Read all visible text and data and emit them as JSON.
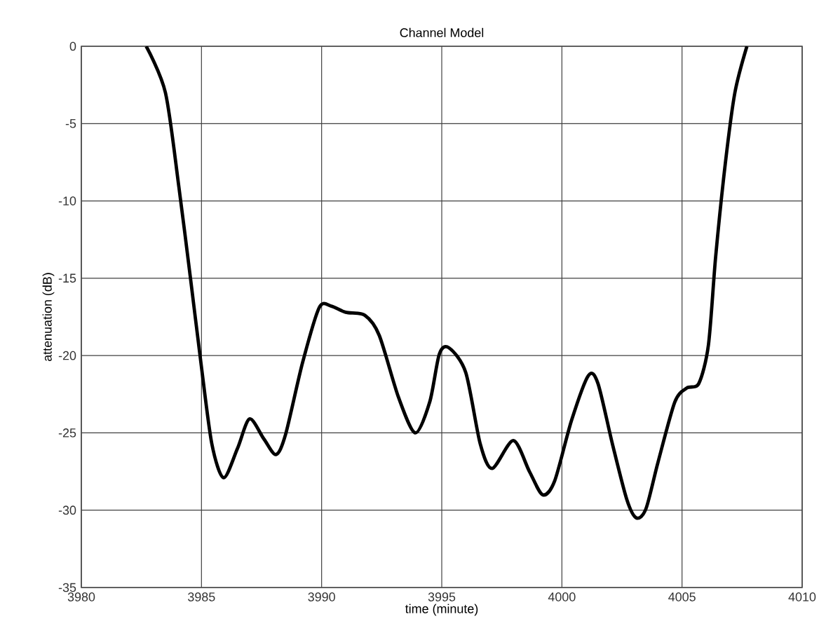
{
  "chart_data": {
    "type": "line",
    "title": "Channel Model",
    "xlabel": "time (minute)",
    "ylabel": "attenuation (dB)",
    "xlim": [
      3980,
      4010
    ],
    "ylim": [
      -35,
      0
    ],
    "xticks": [
      3980,
      3985,
      3990,
      3995,
      4000,
      4005,
      4010
    ],
    "yticks": [
      -35,
      -30,
      -25,
      -20,
      -15,
      -10,
      -5,
      0
    ],
    "grid": true,
    "marker": "none",
    "line_style": "solid",
    "series": [
      {
        "color": "#000000",
        "x": [
          3982.7,
          3983.5,
          3984.06,
          3984.55,
          3984.98,
          3985.43,
          3985.92,
          3986.5,
          3987.0,
          3987.6,
          3988.1,
          3988.5,
          3989.2,
          3989.9,
          3990.4,
          3991.0,
          3991.8,
          3992.4,
          3993.2,
          3993.9,
          3994.5,
          3994.9,
          3995.3,
          3996.0,
          3996.6,
          3997.1,
          3997.98,
          3998.65,
          3999.2,
          3999.7,
          4000.4,
          4001.1,
          4001.5,
          4002.1,
          4002.7,
          4003.1,
          4003.5,
          4004.0,
          4004.7,
          4005.2,
          4005.7,
          4006.1,
          4006.4,
          4006.8,
          4007.2,
          4007.7
        ],
        "values": [
          0,
          -3.0,
          -9.1,
          -15.1,
          -20.5,
          -25.7,
          -27.9,
          -26.0,
          -24.1,
          -25.4,
          -26.4,
          -25.1,
          -20.5,
          -16.9,
          -16.8,
          -17.2,
          -17.4,
          -18.7,
          -22.7,
          -25.0,
          -23.0,
          -19.9,
          -19.5,
          -21.1,
          -25.7,
          -27.3,
          -25.5,
          -27.5,
          -29.0,
          -28.1,
          -24.2,
          -21.3,
          -21.8,
          -25.7,
          -29.3,
          -30.5,
          -29.9,
          -26.9,
          -23.0,
          -22.1,
          -21.8,
          -19.3,
          -13.6,
          -7.6,
          -3.0,
          0
        ]
      }
    ]
  }
}
